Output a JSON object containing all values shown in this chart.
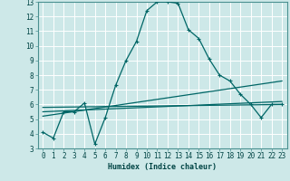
{
  "xlabel": "Humidex (Indice chaleur)",
  "bg_color": "#cde8e8",
  "grid_color": "#b0d8d8",
  "line_color": "#006666",
  "xlim": [
    -0.5,
    23.5
  ],
  "ylim": [
    3,
    13
  ],
  "series1_x": [
    0,
    1,
    2,
    3,
    4,
    5,
    6,
    7,
    8,
    9,
    10,
    11,
    12,
    13,
    14,
    15,
    16,
    17,
    18,
    19,
    20,
    21,
    22,
    23
  ],
  "series1_y": [
    4.1,
    3.7,
    5.5,
    5.5,
    6.1,
    3.3,
    5.1,
    7.3,
    9.0,
    10.3,
    12.4,
    13.0,
    13.0,
    12.9,
    11.1,
    10.5,
    9.1,
    8.0,
    7.6,
    6.7,
    6.0,
    5.1,
    6.0,
    6.0
  ],
  "series2_x": [
    0,
    23
  ],
  "series2_y": [
    5.5,
    6.2
  ],
  "series3_x": [
    0,
    23
  ],
  "series3_y": [
    5.2,
    7.6
  ],
  "series4_x": [
    0,
    23
  ],
  "series4_y": [
    5.8,
    6.0
  ],
  "xticks": [
    0,
    1,
    2,
    3,
    4,
    5,
    6,
    7,
    8,
    9,
    10,
    11,
    12,
    13,
    14,
    15,
    16,
    17,
    18,
    19,
    20,
    21,
    22,
    23
  ],
  "yticks": [
    3,
    4,
    5,
    6,
    7,
    8,
    9,
    10,
    11,
    12,
    13
  ],
  "tick_fontsize": 5.5,
  "xlabel_fontsize": 6.0
}
